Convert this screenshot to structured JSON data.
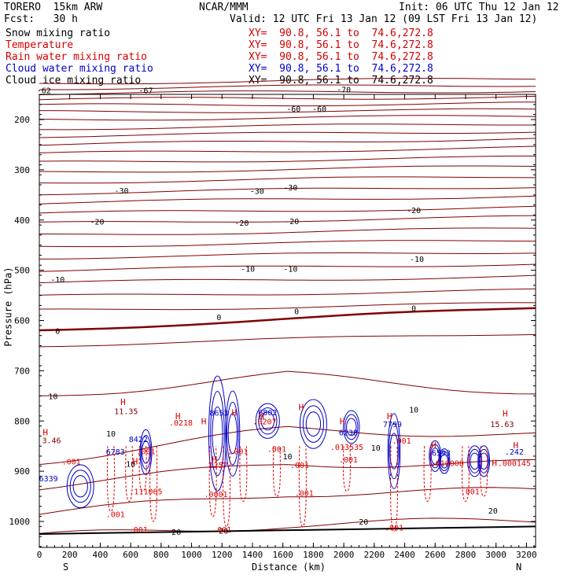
{
  "header": {
    "model": "TORERO  15km ARW",
    "center": "NCAR/MMM",
    "init": "Init: 06 UTC Thu 12 Jan 12",
    "fcst": "Fcst:   30 h",
    "valid": "Valid: 12 UTC Fri 13 Jan 12 (09 LST Fri 13 Jan 12)"
  },
  "legend": [
    {
      "label": "Snow mixing ratio",
      "xs": "XY=  90.8, 56.1 to  74.6,272.8",
      "color": "#000000"
    },
    {
      "label": "Temperature",
      "xs": "XY=  90.8, 56.1 to  74.6,272.8",
      "color": "#d40000"
    },
    {
      "label": "Rain water mixing ratio",
      "xs": "XY=  90.8, 56.1 to  74.6,272.8",
      "color": "#d40000"
    },
    {
      "label": "Cloud water mixing ratio",
      "xs": "XY=  90.8, 56.1 to  74.6,272.8",
      "color": "#0000c8"
    },
    {
      "label": "Cloud ice mixing ratio",
      "xs": "XY=  90.8, 56.1 to  74.6,272.8",
      "color": "#000000"
    }
  ],
  "colors": {
    "temperature": "#800000",
    "rain": "#e00000",
    "cloud": "#0000c8",
    "ground": "#000000"
  },
  "chart_data": {
    "type": "contour-cross-section",
    "xlabel": "Distance (km)",
    "ylabel": "Pressure (hPa)",
    "xlim": [
      0,
      3260
    ],
    "ylim": [
      1050,
      150
    ],
    "x_ticks": [
      0,
      200,
      400,
      600,
      800,
      1000,
      1200,
      1400,
      1600,
      1800,
      2000,
      2200,
      2400,
      2600,
      2800,
      3000,
      3200
    ],
    "y_ticks": [
      200,
      300,
      400,
      500,
      600,
      700,
      800,
      900,
      1000
    ],
    "x_end_labels": [
      "S",
      "N"
    ],
    "temperature_labels": [
      {
        "text": "-70",
        "x": 2000,
        "p": 140
      },
      {
        "text": "-67",
        "x": 700,
        "p": 141
      },
      {
        "text": "-62",
        "x": 30,
        "p": 141
      },
      {
        "text": "-60",
        "x": 1670,
        "p": 178
      },
      {
        "text": "-60",
        "x": 1840,
        "p": 178
      },
      {
        "text": "-30",
        "x": 540,
        "p": 341
      },
      {
        "text": "-30",
        "x": 1430,
        "p": 342
      },
      {
        "text": "-30",
        "x": 1650,
        "p": 335
      },
      {
        "text": "-20",
        "x": 380,
        "p": 403
      },
      {
        "text": "-20",
        "x": 1330,
        "p": 405
      },
      {
        "text": "-20",
        "x": 1660,
        "p": 402
      },
      {
        "text": "-20",
        "x": 2460,
        "p": 380
      },
      {
        "text": "-10",
        "x": 120,
        "p": 518
      },
      {
        "text": "-10",
        "x": 1370,
        "p": 497
      },
      {
        "text": "-10",
        "x": 1650,
        "p": 497
      },
      {
        "text": "-10",
        "x": 2480,
        "p": 477
      },
      {
        "text": "0",
        "x": 120,
        "p": 620
      },
      {
        "text": "0",
        "x": 1180,
        "p": 593
      },
      {
        "text": "0",
        "x": 1690,
        "p": 581
      },
      {
        "text": "0",
        "x": 2460,
        "p": 575
      },
      {
        "text": "10",
        "x": 90,
        "p": 750
      },
      {
        "text": "10",
        "x": 470,
        "p": 825
      },
      {
        "text": "10",
        "x": 600,
        "p": 885
      },
      {
        "text": "10",
        "x": 1630,
        "p": 870
      },
      {
        "text": "10",
        "x": 2210,
        "p": 853
      },
      {
        "text": "10",
        "x": 2460,
        "p": 777
      },
      {
        "text": "20",
        "x": 900,
        "p": 1020
      },
      {
        "text": "20",
        "x": 1210,
        "p": 1018
      },
      {
        "text": "20",
        "x": 2130,
        "p": 1000
      },
      {
        "text": "20",
        "x": 2980,
        "p": 978
      }
    ],
    "maxima_labels": [
      {
        "text": "3.46",
        "x": 80,
        "p": 838
      },
      {
        "text": "11.35",
        "x": 570,
        "p": 780
      },
      {
        "text": "15.63",
        "x": 3040,
        "p": 806
      },
      {
        "text": "8422",
        "x": 650,
        "p": 836
      },
      {
        "text": "6783",
        "x": 500,
        "p": 861
      },
      {
        "text": "6339",
        "x": 60,
        "p": 914
      },
      {
        "text": ".001",
        "x": 210,
        "p": 880
      },
      {
        "text": "8653",
        "x": 1180,
        "p": 783
      },
      {
        "text": "6802",
        "x": 1500,
        "p": 782
      },
      {
        "text": "6238",
        "x": 2030,
        "p": 822
      },
      {
        "text": "7799",
        "x": 2320,
        "p": 806
      },
      {
        "text": "6593",
        "x": 2640,
        "p": 863
      },
      {
        "text": ".242",
        "x": 3120,
        "p": 861
      },
      {
        "text": ".0218",
        "x": 930,
        "p": 803
      },
      {
        "text": ".1257",
        "x": 1160,
        "p": 887
      },
      {
        "text": ".0207",
        "x": 1480,
        "p": 800
      },
      {
        "text": ".013535",
        "x": 2020,
        "p": 851
      },
      {
        "text": ".010008",
        "x": 2680,
        "p": 883
      },
      {
        "text": ".000145",
        "x": 3120,
        "p": 883
      },
      {
        "text": ".111065",
        "x": 700,
        "p": 940
      },
      {
        "text": ".001",
        "x": 700,
        "p": 860
      },
      {
        "text": ".001",
        "x": 1310,
        "p": 860
      },
      {
        "text": ".001",
        "x": 1560,
        "p": 855
      },
      {
        "text": ".001",
        "x": 1710,
        "p": 887
      },
      {
        "text": ".001",
        "x": 2030,
        "p": 876
      },
      {
        "text": ".001",
        "x": 2380,
        "p": 839
      },
      {
        "text": ".001",
        "x": 1740,
        "p": 943
      },
      {
        "text": ".001",
        "x": 2830,
        "p": 940
      },
      {
        "text": ".0001",
        "x": 1160,
        "p": 945
      },
      {
        "text": ".001",
        "x": 500,
        "p": 985
      },
      {
        "text": ".001",
        "x": 650,
        "p": 1016
      },
      {
        "text": ".001",
        "x": 1200,
        "p": 1016
      },
      {
        "text": ".001",
        "x": 2330,
        "p": 1012
      }
    ],
    "H_markers": [
      {
        "x": 40,
        "p": 822
      },
      {
        "x": 550,
        "p": 762
      },
      {
        "x": 910,
        "p": 790
      },
      {
        "x": 1080,
        "p": 800
      },
      {
        "x": 1150,
        "p": 876
      },
      {
        "x": 1280,
        "p": 783
      },
      {
        "x": 1460,
        "p": 790
      },
      {
        "x": 1720,
        "p": 772
      },
      {
        "x": 1990,
        "p": 800
      },
      {
        "x": 2300,
        "p": 790
      },
      {
        "x": 2590,
        "p": 848
      },
      {
        "x": 3060,
        "p": 785
      },
      {
        "x": 3130,
        "p": 848
      },
      {
        "x": 2990,
        "p": 883
      },
      {
        "x": 630,
        "p": 880
      }
    ]
  }
}
